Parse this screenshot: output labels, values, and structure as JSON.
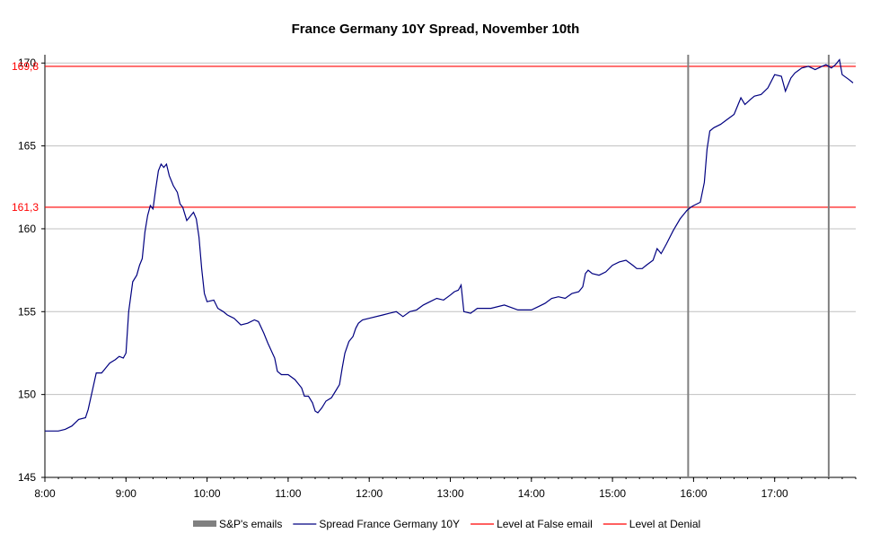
{
  "chart_data": {
    "type": "line",
    "title": "France Germany 10Y Spread, November 10th",
    "xlabel": "",
    "ylabel": "",
    "x_ticks": [
      "8:00",
      "9:00",
      "10:00",
      "11:00",
      "12:00",
      "13:00",
      "14:00",
      "15:00",
      "16:00",
      "17:00"
    ],
    "xlim": [
      "8:00",
      "18:00"
    ],
    "y_ticks": [
      145,
      150,
      155,
      160,
      165,
      170
    ],
    "ylim": [
      145,
      170.5
    ],
    "grid": {
      "horizontal": true,
      "vertical": false
    },
    "legend_position": "bottom",
    "series": [
      {
        "name": "Spread France Germany 10Y",
        "color": "#000080",
        "points": [
          [
            "8:00",
            147.8
          ],
          [
            "8:05",
            147.8
          ],
          [
            "8:10",
            147.8
          ],
          [
            "8:15",
            147.9
          ],
          [
            "8:20",
            148.1
          ],
          [
            "8:25",
            148.5
          ],
          [
            "8:30",
            148.6
          ],
          [
            "8:32",
            149.1
          ],
          [
            "8:35",
            150.2
          ],
          [
            "8:38",
            151.3
          ],
          [
            "8:42",
            151.3
          ],
          [
            "8:45",
            151.6
          ],
          [
            "8:48",
            151.9
          ],
          [
            "8:52",
            152.1
          ],
          [
            "8:55",
            152.3
          ],
          [
            "8:58",
            152.2
          ],
          [
            "9:00",
            152.5
          ],
          [
            "9:02",
            155.0
          ],
          [
            "9:05",
            156.8
          ],
          [
            "9:08",
            157.2
          ],
          [
            "9:10",
            157.8
          ],
          [
            "9:12",
            158.2
          ],
          [
            "9:14",
            159.8
          ],
          [
            "9:16",
            160.8
          ],
          [
            "9:18",
            161.4
          ],
          [
            "9:20",
            161.2
          ],
          [
            "9:22",
            162.4
          ],
          [
            "9:24",
            163.5
          ],
          [
            "9:26",
            163.9
          ],
          [
            "9:28",
            163.7
          ],
          [
            "9:30",
            163.9
          ],
          [
            "9:32",
            163.2
          ],
          [
            "9:35",
            162.6
          ],
          [
            "9:38",
            162.2
          ],
          [
            "9:40",
            161.5
          ],
          [
            "9:42",
            161.3
          ],
          [
            "9:45",
            160.5
          ],
          [
            "9:48",
            160.8
          ],
          [
            "9:50",
            161.0
          ],
          [
            "9:52",
            160.6
          ],
          [
            "9:54",
            159.5
          ],
          [
            "9:56",
            157.6
          ],
          [
            "9:58",
            156.1
          ],
          [
            "10:00",
            155.6
          ],
          [
            "10:05",
            155.7
          ],
          [
            "10:08",
            155.2
          ],
          [
            "10:12",
            155.0
          ],
          [
            "10:15",
            154.8
          ],
          [
            "10:20",
            154.6
          ],
          [
            "10:25",
            154.2
          ],
          [
            "10:30",
            154.3
          ],
          [
            "10:35",
            154.5
          ],
          [
            "10:38",
            154.4
          ],
          [
            "10:42",
            153.7
          ],
          [
            "10:45",
            153.1
          ],
          [
            "10:50",
            152.2
          ],
          [
            "10:52",
            151.4
          ],
          [
            "10:55",
            151.2
          ],
          [
            "11:00",
            151.2
          ],
          [
            "11:05",
            150.9
          ],
          [
            "11:10",
            150.4
          ],
          [
            "11:12",
            149.9
          ],
          [
            "11:15",
            149.9
          ],
          [
            "11:18",
            149.5
          ],
          [
            "11:20",
            149.0
          ],
          [
            "11:22",
            148.9
          ],
          [
            "11:25",
            149.2
          ],
          [
            "11:28",
            149.6
          ],
          [
            "11:32",
            149.8
          ],
          [
            "11:35",
            150.2
          ],
          [
            "11:38",
            150.6
          ],
          [
            "11:40",
            151.6
          ],
          [
            "11:42",
            152.5
          ],
          [
            "11:45",
            153.2
          ],
          [
            "11:48",
            153.5
          ],
          [
            "11:50",
            154.0
          ],
          [
            "11:52",
            154.3
          ],
          [
            "11:55",
            154.5
          ],
          [
            "12:00",
            154.6
          ],
          [
            "12:10",
            154.8
          ],
          [
            "12:15",
            154.9
          ],
          [
            "12:20",
            155.0
          ],
          [
            "12:25",
            154.7
          ],
          [
            "12:30",
            155.0
          ],
          [
            "12:35",
            155.1
          ],
          [
            "12:40",
            155.4
          ],
          [
            "12:45",
            155.6
          ],
          [
            "12:50",
            155.8
          ],
          [
            "12:55",
            155.7
          ],
          [
            "13:00",
            156.0
          ],
          [
            "13:03",
            156.2
          ],
          [
            "13:06",
            156.3
          ],
          [
            "13:08",
            156.6
          ],
          [
            "13:10",
            155.0
          ],
          [
            "13:15",
            154.9
          ],
          [
            "13:20",
            155.2
          ],
          [
            "13:30",
            155.2
          ],
          [
            "13:40",
            155.4
          ],
          [
            "13:50",
            155.1
          ],
          [
            "14:00",
            155.1
          ],
          [
            "14:05",
            155.3
          ],
          [
            "14:10",
            155.5
          ],
          [
            "14:15",
            155.8
          ],
          [
            "14:20",
            155.9
          ],
          [
            "14:25",
            155.8
          ],
          [
            "14:30",
            156.1
          ],
          [
            "14:35",
            156.2
          ],
          [
            "14:38",
            156.5
          ],
          [
            "14:40",
            157.3
          ],
          [
            "14:42",
            157.5
          ],
          [
            "14:45",
            157.3
          ],
          [
            "14:50",
            157.2
          ],
          [
            "14:55",
            157.4
          ],
          [
            "15:00",
            157.8
          ],
          [
            "15:05",
            158.0
          ],
          [
            "15:10",
            158.1
          ],
          [
            "15:15",
            157.8
          ],
          [
            "15:18",
            157.6
          ],
          [
            "15:22",
            157.6
          ],
          [
            "15:25",
            157.8
          ],
          [
            "15:30",
            158.1
          ],
          [
            "15:33",
            158.8
          ],
          [
            "15:36",
            158.5
          ],
          [
            "15:40",
            159.1
          ],
          [
            "15:45",
            159.9
          ],
          [
            "15:50",
            160.6
          ],
          [
            "15:55",
            161.1
          ],
          [
            "15:58",
            161.3
          ],
          [
            "16:00",
            161.4
          ],
          [
            "16:05",
            161.6
          ],
          [
            "16:08",
            162.8
          ],
          [
            "16:10",
            164.8
          ],
          [
            "16:12",
            165.9
          ],
          [
            "16:15",
            166.1
          ],
          [
            "16:20",
            166.3
          ],
          [
            "16:25",
            166.6
          ],
          [
            "16:30",
            166.9
          ],
          [
            "16:35",
            167.9
          ],
          [
            "16:38",
            167.5
          ],
          [
            "16:42",
            167.8
          ],
          [
            "16:45",
            168.0
          ],
          [
            "16:50",
            168.1
          ],
          [
            "16:55",
            168.5
          ],
          [
            "17:00",
            169.3
          ],
          [
            "17:05",
            169.2
          ],
          [
            "17:08",
            168.3
          ],
          [
            "17:12",
            169.1
          ],
          [
            "17:15",
            169.4
          ],
          [
            "17:20",
            169.7
          ],
          [
            "17:25",
            169.8
          ],
          [
            "17:30",
            169.6
          ],
          [
            "17:35",
            169.8
          ],
          [
            "17:38",
            169.9
          ],
          [
            "17:42",
            169.7
          ],
          [
            "17:45",
            169.9
          ],
          [
            "17:48",
            170.2
          ],
          [
            "17:50",
            169.3
          ],
          [
            "17:55",
            169.0
          ],
          [
            "17:58",
            168.8
          ]
        ]
      },
      {
        "name": "Level at False email",
        "color": "#ff0000",
        "value": 161.3,
        "label": "161,3"
      },
      {
        "name": "Level at Denial",
        "color": "#ff0000",
        "value": 169.8,
        "label": "169,8"
      },
      {
        "name": "S&P's emails",
        "color": "#808080",
        "x_values": [
          "15:56",
          "17:40"
        ]
      }
    ],
    "legend": [
      {
        "label": "S&P's emails",
        "style": "bar",
        "color": "#808080"
      },
      {
        "label": "Spread France Germany 10Y",
        "style": "line",
        "color": "#000080"
      },
      {
        "label": "Level at False email",
        "style": "line",
        "color": "#ff0000"
      },
      {
        "label": "Level at Denial",
        "style": "line",
        "color": "#ff0000"
      }
    ]
  }
}
